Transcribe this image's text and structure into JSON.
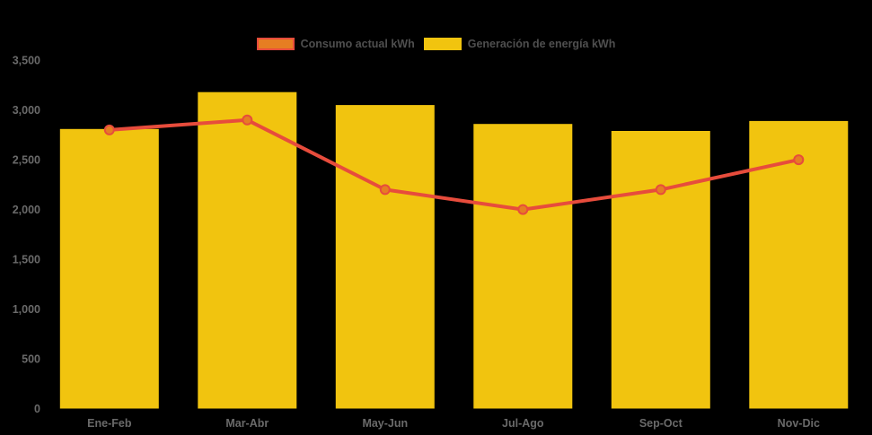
{
  "app": {
    "background": "#000000"
  },
  "chart_data": {
    "type": "bar",
    "subtype": "bar-line-combo",
    "title": "",
    "xlabel": "",
    "ylabel": "",
    "unit": "kWh",
    "categories": [
      "Ene-Feb",
      "Mar-Abr",
      "May-Jun",
      "Jul-Ago",
      "Sep-Oct",
      "Nov-Dic"
    ],
    "series": [
      {
        "name": "Consumo actual kWh",
        "type": "line",
        "values": [
          2800,
          2900,
          2200,
          2000,
          2200,
          2500
        ],
        "line_color": "#E74C3C",
        "marker_fill": "#E67E22",
        "marker_stroke": "#E74C3C"
      },
      {
        "name": "Generación de energía kWh",
        "type": "bar",
        "values": [
          2810,
          3180,
          3050,
          2860,
          2790,
          2890
        ],
        "bar_color": "#F1C40F"
      }
    ],
    "ylim": [
      0,
      3500
    ],
    "ytick_step": 500,
    "ytick_labels": [
      "0",
      "500",
      "1,000",
      "1,500",
      "2,000",
      "2,500",
      "3,000",
      "3,500"
    ],
    "grid": false,
    "legend_position": "top-center",
    "axis_text_color": "#6A6A6A",
    "legend_text_color": "#4F4F4F",
    "background": "#000000"
  }
}
